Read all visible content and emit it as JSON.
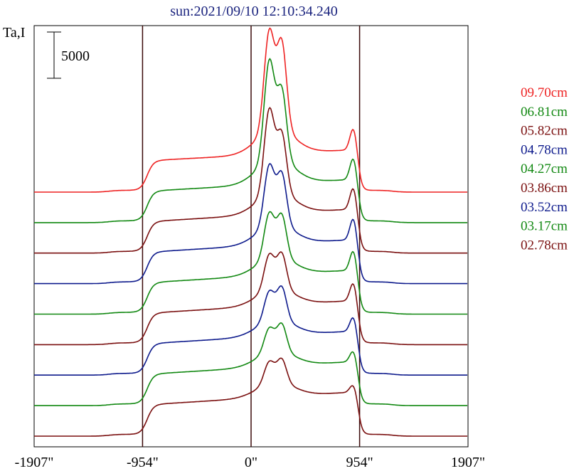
{
  "chart_data": {
    "type": "line",
    "title": "sun:2021/09/10 12:10:34.240",
    "ylabel": "Ta,I",
    "scale_bar_label": "5000",
    "scale_bar_value": 5000,
    "xlim": [
      -1907,
      1907
    ],
    "x_ticks": [
      {
        "value": -1907,
        "label": "-1907\""
      },
      {
        "value": -954,
        "label": "-954\""
      },
      {
        "value": 0,
        "label": "0\""
      },
      {
        "value": 954,
        "label": "954\""
      },
      {
        "value": 1907,
        "label": "1907\""
      }
    ],
    "vertical_markers": [
      -954,
      0,
      954
    ],
    "grid": false,
    "legend_position": "right",
    "series": [
      {
        "name": "09.70cm",
        "color": "#ee2222",
        "baseline": 0,
        "disk_start": 0.33,
        "disk_end": 0.46,
        "peak1": 1.6,
        "peak2": 1.44,
        "valley": 0.82,
        "knee": 0.26
      },
      {
        "name": "06.81cm",
        "color": "#118811",
        "baseline": 0,
        "disk_start": 0.33,
        "disk_end": 0.47,
        "peak1": 1.6,
        "peak2": 1.22,
        "valley": 0.8,
        "knee": 0.26
      },
      {
        "name": "05.82cm",
        "color": "#7a0f0f",
        "baseline": 0,
        "disk_start": 0.33,
        "disk_end": 0.48,
        "peak1": 1.36,
        "peak2": 1.04,
        "valley": 0.7,
        "knee": 0.26
      },
      {
        "name": "04.78cm",
        "color": "#0d1a8c",
        "baseline": 0,
        "disk_start": 0.33,
        "disk_end": 0.48,
        "peak1": 1.04,
        "peak2": 0.92,
        "valley": 0.64,
        "knee": 0.26
      },
      {
        "name": "04.27cm",
        "color": "#118811",
        "baseline": 0,
        "disk_start": 0.33,
        "disk_end": 0.48,
        "peak1": 0.82,
        "peak2": 0.78,
        "valley": 0.58,
        "knee": 0.24
      },
      {
        "name": "03.86cm",
        "color": "#7a0f0f",
        "baseline": 0,
        "disk_start": 0.33,
        "disk_end": 0.48,
        "peak1": 0.68,
        "peak2": 0.68,
        "valley": 0.54,
        "knee": 0.22
      },
      {
        "name": "03.52cm",
        "color": "#0d1a8c",
        "baseline": 0,
        "disk_start": 0.33,
        "disk_end": 0.48,
        "peak1": 0.6,
        "peak2": 0.64,
        "valley": 0.52,
        "knee": 0.18
      },
      {
        "name": "03.17cm",
        "color": "#118811",
        "baseline": 0,
        "disk_start": 0.33,
        "disk_end": 0.48,
        "peak1": 0.52,
        "peak2": 0.56,
        "valley": 0.49,
        "knee": 0.14
      },
      {
        "name": "02.78cm",
        "color": "#7a0f0f",
        "baseline": 0,
        "disk_start": 0.33,
        "disk_end": 0.48,
        "peak1": 0.48,
        "peak2": 0.5,
        "valley": 0.46,
        "knee": 0.1
      }
    ]
  }
}
